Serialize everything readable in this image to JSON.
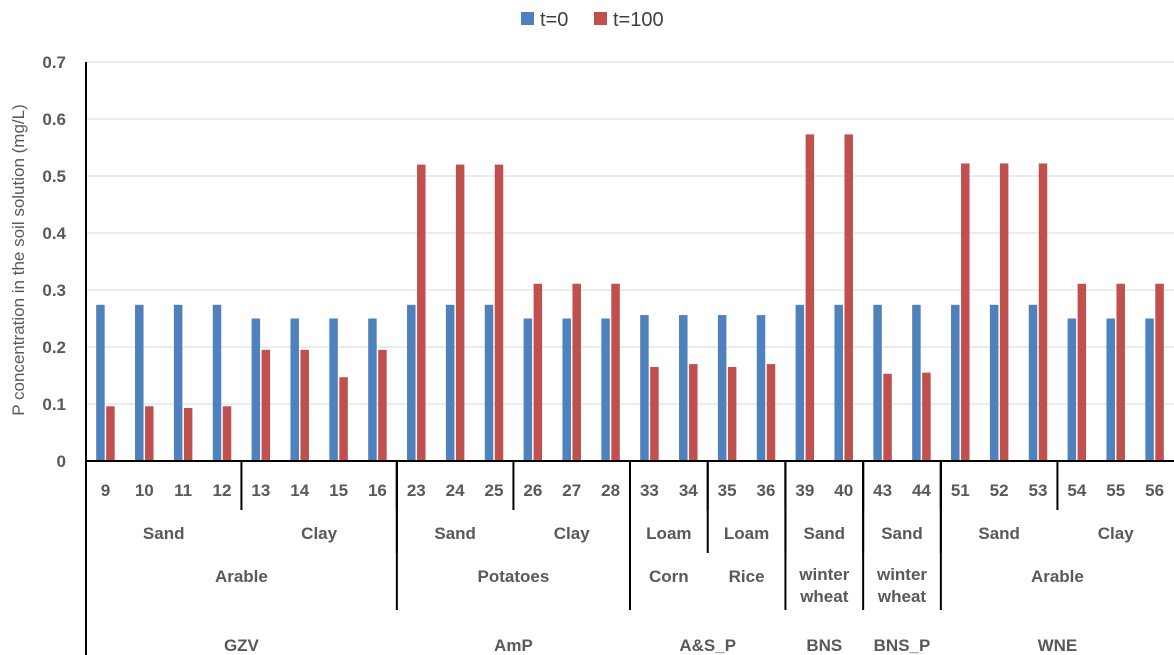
{
  "chart_data": {
    "type": "bar",
    "title": "",
    "ylabel": "P concentration in the soil solution (mg/L)",
    "xlabel": "",
    "ylim": [
      0,
      0.7
    ],
    "yticks": [
      "0",
      "0.1",
      "0.2",
      "0.3",
      "0.4",
      "0.5",
      "0.6",
      "0.7"
    ],
    "grid": true,
    "legend_position": "top-center",
    "categories": [
      "9",
      "10",
      "11",
      "12",
      "13",
      "14",
      "15",
      "16",
      "23",
      "24",
      "25",
      "26",
      "27",
      "28",
      "33",
      "34",
      "35",
      "36",
      "39",
      "40",
      "43",
      "44",
      "51",
      "52",
      "53",
      "54",
      "55",
      "56"
    ],
    "series": [
      {
        "name": "t=0",
        "color": "#4f81bd",
        "values": [
          0.274,
          0.274,
          0.274,
          0.274,
          0.25,
          0.25,
          0.25,
          0.25,
          0.274,
          0.274,
          0.274,
          0.25,
          0.25,
          0.25,
          0.256,
          0.256,
          0.256,
          0.256,
          0.274,
          0.274,
          0.274,
          0.274,
          0.274,
          0.274,
          0.274,
          0.25,
          0.25,
          0.25
        ]
      },
      {
        "name": "t=100",
        "color": "#c0504d",
        "values": [
          0.096,
          0.096,
          0.093,
          0.096,
          0.195,
          0.195,
          0.147,
          0.195,
          0.52,
          0.52,
          0.52,
          0.311,
          0.311,
          0.311,
          0.165,
          0.17,
          0.165,
          0.17,
          0.573,
          0.573,
          0.153,
          0.155,
          0.522,
          0.522,
          0.522,
          0.311,
          0.311,
          0.311
        ]
      }
    ],
    "group_levels": [
      {
        "groups": [
          {
            "label": "Sand",
            "start": 0,
            "end": 3
          },
          {
            "label": "Clay",
            "start": 4,
            "end": 7
          },
          {
            "label": "Sand",
            "start": 8,
            "end": 10
          },
          {
            "label": "Clay",
            "start": 11,
            "end": 13
          },
          {
            "label": "Loam",
            "start": 14,
            "end": 15
          },
          {
            "label": "Loam",
            "start": 16,
            "end": 17
          },
          {
            "label": "Sand",
            "start": 18,
            "end": 19
          },
          {
            "label": "Sand",
            "start": 20,
            "end": 21
          },
          {
            "label": "Sand",
            "start": 22,
            "end": 24
          },
          {
            "label": "Clay",
            "start": 25,
            "end": 27
          }
        ]
      },
      {
        "groups": [
          {
            "label": "Arable",
            "start": 0,
            "end": 7
          },
          {
            "label": "Potatoes",
            "start": 8,
            "end": 13
          },
          {
            "label": "Corn",
            "start": 14,
            "end": 15
          },
          {
            "label": "Rice",
            "start": 16,
            "end": 17
          },
          {
            "label": "winter\nwheat",
            "start": 18,
            "end": 19
          },
          {
            "label": "winter\nwheat",
            "start": 20,
            "end": 21
          },
          {
            "label": "Arable",
            "start": 22,
            "end": 27
          }
        ]
      },
      {
        "groups": [
          {
            "label": "GZV",
            "start": 0,
            "end": 7
          },
          {
            "label": "AmP",
            "start": 8,
            "end": 13
          },
          {
            "label": "A&S_P",
            "start": 14,
            "end": 17
          },
          {
            "label": "BNS",
            "start": 18,
            "end": 19
          },
          {
            "label": "BNS_P",
            "start": 20,
            "end": 21
          },
          {
            "label": "WNE",
            "start": 22,
            "end": 27
          }
        ]
      }
    ]
  }
}
